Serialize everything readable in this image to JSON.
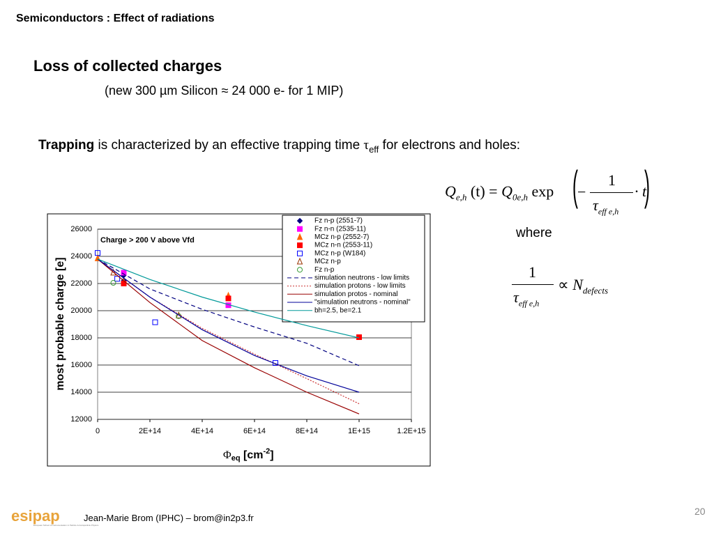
{
  "header": {
    "section": "Semiconductors : Effect of radiations",
    "title": "Loss of collected charges",
    "subtitle": "(new 300 µm Silicon ≈ 24 000 e- for 1 MIP)"
  },
  "trapping": {
    "bold": "Trapping",
    "text": " is characterized by an effective trapping time ",
    "symbol": "τ",
    "sub": "eff",
    "end": " for electrons and holes:"
  },
  "formula1": {
    "q": "Q",
    "q_sub": "e,h",
    "mid": "(t) =",
    "q0": "Q",
    "q0_sub": "0e,h",
    "exp": "exp",
    "minus": "−",
    "num": "1",
    "tau": "τ",
    "tau_sub": "eff  e,h",
    "tail": "· t"
  },
  "where": "where",
  "formula2": {
    "num": "1",
    "tau": "τ",
    "tau_sub": "eff  e,h",
    "prop": "∝",
    "n": "N",
    "n_sub": "defects"
  },
  "footer": {
    "logo": "esipap",
    "logo_caption": "European School of Instrumentation in Particle & Astroparticle Physics",
    "author": "Jean-Marie Brom (IPHC) – brom@in2p3.fr",
    "page": "20"
  },
  "chart_data": {
    "type": "scatter",
    "annotation": "Charge > 200 V above Vfd",
    "y_label": "most probable charge [e]",
    "x_label": {
      "symbol": "Φ",
      "sub": "eq",
      "unit": " [cm",
      "sup": "-2",
      "close": "]"
    },
    "xlim": [
      0,
      1200000000000000.0
    ],
    "ylim": [
      12000,
      26000
    ],
    "xticks": [
      0,
      {
        "value": 200000000000000.0,
        "label": "2E+14"
      },
      {
        "value": 400000000000000.0,
        "label": "4E+14"
      },
      {
        "value": 600000000000000.0,
        "label": "6E+14"
      },
      {
        "value": 800000000000000.0,
        "label": "8E+14"
      },
      {
        "value": 1000000000000000.0,
        "label": "1E+15"
      },
      {
        "value": 1200000000000000.0,
        "label": "1.2E+15"
      }
    ],
    "yticks": [
      12000,
      14000,
      16000,
      18000,
      20000,
      22000,
      24000,
      26000
    ],
    "grid": true,
    "series": [
      {
        "name": "Fz n-p (2551-7)",
        "color": "#000080",
        "marker": "diamond",
        "x": [
          100000000000000.0,
          100000000000000.0
        ],
        "values": [
          22600,
          22200
        ]
      },
      {
        "name": "Fz n-n (2535-11)",
        "color": "#ff00ff",
        "marker": "square",
        "x": [
          100000000000000.0,
          500000000000000.0
        ],
        "values": [
          22800,
          20400
        ]
      },
      {
        "name": "MCz n-p (2552-7)",
        "color": "#ff6600",
        "marker": "triangle",
        "x": [
          0,
          100000000000000.0,
          500000000000000.0
        ],
        "values": [
          23850,
          22100,
          21100
        ]
      },
      {
        "name": "MCz n-n (2553-11)",
        "color": "#ff0000",
        "marker": "square",
        "x": [
          100000000000000.0,
          500000000000000.0,
          1000000000000000.0
        ],
        "values": [
          22000,
          20900,
          18050
        ]
      },
      {
        "name": "MCz n-p (W184)",
        "color": "#0000ff",
        "marker": "open-square",
        "x": [
          0,
          75000000000000.0,
          220000000000000.0,
          680000000000000.0
        ],
        "values": [
          24250,
          22350,
          19150,
          16150
        ]
      },
      {
        "name": "MCz n-p",
        "color": "#993300",
        "marker": "open-triangle",
        "x": [
          60000000000000.0,
          310000000000000.0
        ],
        "values": [
          22800,
          19650
        ]
      },
      {
        "name": "Fz n-p",
        "color": "#339933",
        "marker": "open-circle",
        "x": [
          60000000000000.0,
          310000000000000.0
        ],
        "values": [
          22050,
          19600
        ]
      },
      {
        "name": "simulation neutrons - low limits",
        "color": "#000080",
        "dash": "dashed",
        "x": [
          0,
          200000000000000.0,
          400000000000000.0,
          600000000000000.0,
          800000000000000.0,
          1000000000000000.0
        ],
        "values": [
          23800,
          21600,
          20100,
          18800,
          17600,
          15950
        ]
      },
      {
        "name": "simulation protons - low limits",
        "color": "#cc3333",
        "dash": "dotted",
        "x": [
          0,
          200000000000000.0,
          400000000000000.0,
          600000000000000.0,
          800000000000000.0,
          1000000000000000.0
        ],
        "values": [
          23800,
          21000,
          18700,
          16800,
          15000,
          13150
        ]
      },
      {
        "name": "simulation protos - nominal",
        "color": "#990000",
        "dash": "solid",
        "x": [
          0,
          200000000000000.0,
          400000000000000.0,
          600000000000000.0,
          800000000000000.0,
          1000000000000000.0
        ],
        "values": [
          23800,
          20600,
          17800,
          15800,
          14000,
          12400
        ]
      },
      {
        "name": "\"simulation neutrons - nominal\"",
        "color": "#000099",
        "dash": "solid",
        "x": [
          0,
          200000000000000.0,
          400000000000000.0,
          600000000000000.0,
          800000000000000.0,
          1000000000000000.0
        ],
        "values": [
          23800,
          21000,
          18600,
          16700,
          15200,
          14000
        ]
      },
      {
        "name": "bh=2.5, be=2.1",
        "color": "#009999",
        "dash": "solid",
        "x": [
          0,
          200000000000000.0,
          400000000000000.0,
          600000000000000.0,
          800000000000000.0,
          1000000000000000.0
        ],
        "values": [
          23800,
          22300,
          21000,
          19900,
          18900,
          18000
        ]
      }
    ]
  }
}
